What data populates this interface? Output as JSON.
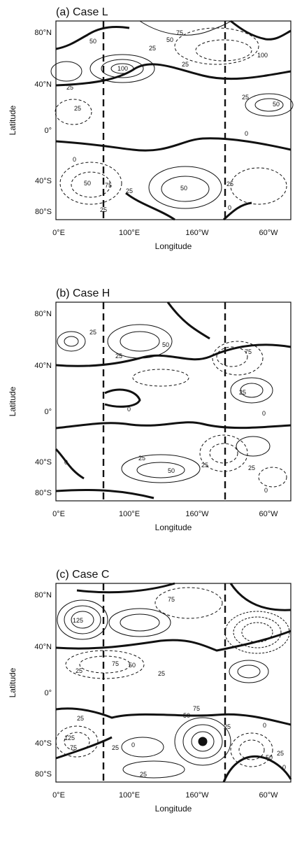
{
  "chart_data": [
    {
      "type": "contour",
      "title": "(a)  Case L",
      "xlabel": "Longitude",
      "ylabel": "Latitude",
      "x_ticks": [
        "0°E",
        "100°E",
        "160°W",
        "60°W"
      ],
      "y_ticks": [
        "80°N",
        "40°N",
        "0°",
        "40°S",
        "80°S"
      ],
      "xlim": [
        0,
        360
      ],
      "ylim": [
        -90,
        90
      ],
      "contour_labels": [
        "50",
        "25",
        "50",
        "75",
        "25",
        "100",
        "25",
        "100",
        "25",
        "25",
        "50",
        "0",
        "0",
        "50",
        "75",
        "25",
        "50",
        "25",
        "0",
        "25"
      ],
      "zero_contour_style": "bold",
      "negative_contour_style": "dashed",
      "dashed_boundaries_lon": [
        90,
        270
      ]
    },
    {
      "type": "contour",
      "title": "(b)  Case H",
      "xlabel": "Longitude",
      "ylabel": "Latitude",
      "x_ticks": [
        "0°E",
        "100°E",
        "160°W",
        "60°W"
      ],
      "y_ticks": [
        "80°N",
        "40°N",
        "0°",
        "40°S",
        "80°S"
      ],
      "xlim": [
        0,
        360
      ],
      "ylim": [
        -90,
        90
      ],
      "contour_labels": [
        "25",
        "50",
        "25",
        "75",
        "25",
        "0",
        "0",
        "0",
        "25",
        "50",
        "25",
        "25",
        "0"
      ],
      "zero_contour_style": "bold",
      "negative_contour_style": "dashed",
      "dashed_boundaries_lon": [
        90,
        270
      ]
    },
    {
      "type": "contour",
      "title": "(c)  Case C",
      "xlabel": "Longitude",
      "ylabel": "Latitude",
      "x_ticks": [
        "0°E",
        "100°E",
        "160°W",
        "60°W"
      ],
      "y_ticks": [
        "80°N",
        "40°N",
        "0°",
        "40°S",
        "80°S"
      ],
      "xlim": [
        0,
        360
      ],
      "ylim": [
        -90,
        90
      ],
      "contour_labels": [
        "75",
        "125",
        "75",
        "50",
        "25",
        "25",
        "25",
        "125",
        "75",
        "25",
        "0",
        "50",
        "75",
        "25",
        "0",
        "50",
        "25",
        "0",
        "25"
      ],
      "zero_contour_style": "bold",
      "negative_contour_style": "dashed",
      "dashed_boundaries_lon": [
        90,
        270
      ]
    }
  ]
}
